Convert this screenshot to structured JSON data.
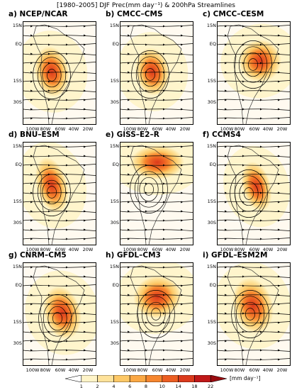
{
  "figure_title": "[1980–2005] DJF Prec(mm day⁻¹) & 200hPa Streamlines",
  "lat_labels": [
    "15N",
    "EQ",
    "15S",
    "30S"
  ],
  "lon_labels": [
    "100W",
    "80W",
    "60W",
    "40W",
    "20W"
  ],
  "panels": [
    {
      "label": "a) NCEP/NCAR"
    },
    {
      "label": "b) CMCC–CMS"
    },
    {
      "label": "c) CMCC–CESM"
    },
    {
      "label": "d) BNU–ESM"
    },
    {
      "label": "e) GISS–E2–R"
    },
    {
      "label": "f) CCMS4"
    },
    {
      "label": "g) CNRM–CM5"
    },
    {
      "label": "h) GFDL–CM3"
    },
    {
      "label": "i) GFDL–ESM2M"
    }
  ],
  "colorbar": {
    "levels": [
      "1",
      "2",
      "4",
      "6",
      "8",
      "10",
      "14",
      "18",
      "22"
    ],
    "units": "[mm day⁻¹]",
    "colors": [
      "#ffffff",
      "#fff4c8",
      "#fee29a",
      "#fdc866",
      "#fba844",
      "#f6862e",
      "#ec5e22",
      "#db3a1c",
      "#c01818",
      "#9a0c10"
    ]
  }
}
